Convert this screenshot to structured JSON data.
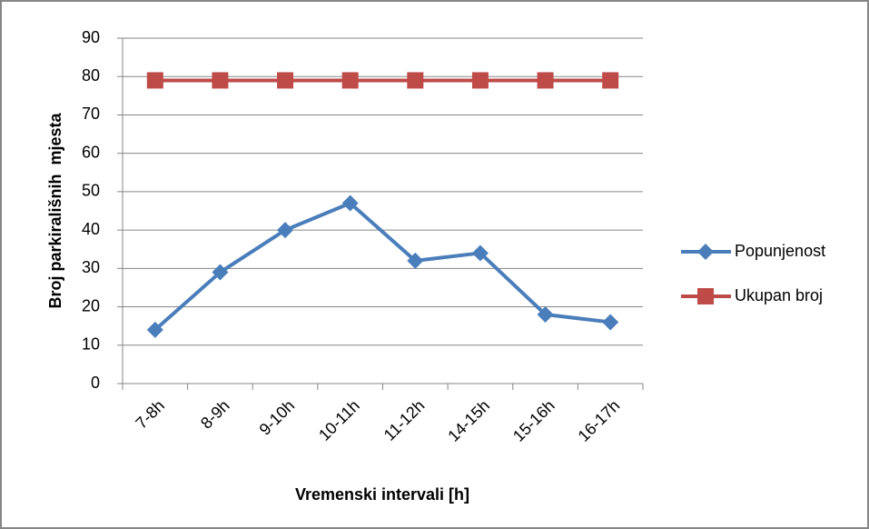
{
  "chart_data": {
    "type": "line",
    "categories": [
      "7-8h",
      "8-9h",
      "9-10h",
      "10-11h",
      "11-12h",
      "14-15h",
      "15-16h",
      "16-17h"
    ],
    "series": [
      {
        "name": "Popunjenost",
        "color": "#4a7ebb",
        "marker": "diamond",
        "values": [
          14,
          29,
          40,
          47,
          32,
          34,
          18,
          16
        ]
      },
      {
        "name": "Ukupan broj",
        "color": "#be4b48",
        "marker": "square",
        "values": [
          79,
          79,
          79,
          79,
          79,
          79,
          79,
          79
        ]
      }
    ],
    "xlabel": "Vremenski intervali [h]",
    "ylabel": "Broj parkirališnih  mjesta",
    "ylim": [
      0,
      90
    ],
    "yticks": [
      0,
      10,
      20,
      30,
      40,
      50,
      60,
      70,
      80,
      90
    ],
    "grid": true,
    "legend": "right"
  }
}
